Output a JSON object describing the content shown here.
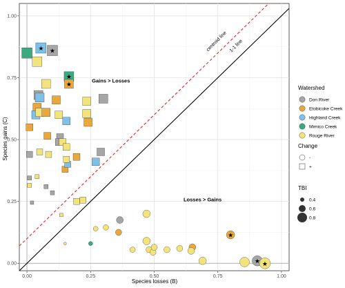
{
  "chart_data": {
    "type": "scatter",
    "xlabel": "Species losses (B)",
    "ylabel": "Species gains (C)",
    "xlim": [
      -0.03,
      1.03
    ],
    "ylim": [
      -0.03,
      1.05
    ],
    "xticks": [
      "0.00",
      "0.25",
      "0.50",
      "0.75",
      "1.00"
    ],
    "yticks": [
      "0.00",
      "0.25",
      "0.50",
      "0.75",
      "1.00"
    ],
    "grid": true,
    "legend_position": "right",
    "colors": {
      "Don River": "#a6a6a6",
      "Etobicoke Creek": "#e8a83e",
      "Highland Creek": "#7ec0e8",
      "Mimico Creek": "#3aaa80",
      "Rouge River": "#f3e37c"
    },
    "reference_lines": [
      {
        "label": "1-1 line",
        "slope": 1,
        "intercept": 0,
        "style": "solid",
        "color": "#000000"
      },
      {
        "label": "centroid line",
        "slope": 1,
        "intercept": 0.1,
        "style": "dashed",
        "color": "#e8232a"
      }
    ],
    "annotations": [
      {
        "text": "Gains > Losses",
        "x": 0.33,
        "y": 0.73
      },
      {
        "text": "Losses > Gains",
        "x": 0.69,
        "y": 0.25
      }
    ],
    "legend": {
      "watershed_title": "Watershed",
      "watersheds": [
        "Don River",
        "Etobicoke Creek",
        "Highland Creek",
        "Mimico Creek",
        "Rouge River"
      ],
      "change_title": "Change",
      "change_items": [
        {
          "label": "-",
          "shape": "circle"
        },
        {
          "label": "+",
          "shape": "square"
        }
      ],
      "tbi_title": "TBI",
      "tbi_items": [
        "0.4",
        "0.6",
        "0.8"
      ]
    },
    "points": [
      {
        "x": 0.0,
        "y": 0.85,
        "w": "Mimico Creek",
        "s": "square",
        "tbi": 0.85
      },
      {
        "x": 0.04,
        "y": 0.815,
        "w": "Rouge River",
        "s": "square",
        "tbi": 0.8
      },
      {
        "x": 0.055,
        "y": 0.87,
        "w": "Highland Creek",
        "s": "square",
        "tbi": 0.85,
        "star": true
      },
      {
        "x": 0.1,
        "y": 0.86,
        "w": "Don River",
        "s": "square",
        "tbi": 0.85,
        "star": true
      },
      {
        "x": 0.075,
        "y": 0.725,
        "w": "Rouge River",
        "s": "square",
        "tbi": 0.75
      },
      {
        "x": 0.045,
        "y": 0.68,
        "w": "Don River",
        "s": "square",
        "tbi": 0.75
      },
      {
        "x": 0.05,
        "y": 0.67,
        "w": "Highland Creek",
        "s": "square",
        "tbi": 0.75
      },
      {
        "x": 0.04,
        "y": 0.63,
        "w": "Etobicoke Creek",
        "s": "square",
        "tbi": 0.7
      },
      {
        "x": 0.035,
        "y": 0.6,
        "w": "Highland Creek",
        "s": "square",
        "tbi": 0.7
      },
      {
        "x": 0.05,
        "y": 0.61,
        "w": "Rouge River",
        "s": "square",
        "tbi": 0.7
      },
      {
        "x": 0.075,
        "y": 0.61,
        "w": "Etobicoke Creek",
        "s": "square",
        "tbi": 0.7
      },
      {
        "x": 0.165,
        "y": 0.755,
        "w": "Mimico Creek",
        "s": "square",
        "tbi": 0.8,
        "star": true
      },
      {
        "x": 0.165,
        "y": 0.725,
        "w": "Etobicoke Creek",
        "s": "square",
        "tbi": 0.75,
        "star": true
      },
      {
        "x": 0.115,
        "y": 0.66,
        "w": "Etobicoke Creek",
        "s": "square",
        "tbi": 0.7
      },
      {
        "x": 0.125,
        "y": 0.6,
        "w": "Rouge River",
        "s": "square",
        "tbi": 0.65
      },
      {
        "x": 0.155,
        "y": 0.575,
        "w": "Highland Creek",
        "s": "square",
        "tbi": 0.65
      },
      {
        "x": 0.235,
        "y": 0.655,
        "w": "Rouge River",
        "s": "square",
        "tbi": 0.7
      },
      {
        "x": 0.235,
        "y": 0.605,
        "w": "Rouge River",
        "s": "square",
        "tbi": 0.7
      },
      {
        "x": 0.24,
        "y": 0.57,
        "w": "Etobicoke Creek",
        "s": "square",
        "tbi": 0.7
      },
      {
        "x": 0.3,
        "y": 0.665,
        "w": "Don River",
        "s": "square",
        "tbi": 0.75
      },
      {
        "x": 0.01,
        "y": 0.55,
        "w": "Etobicoke Creek",
        "s": "square",
        "tbi": 0.6
      },
      {
        "x": 0.08,
        "y": 0.515,
        "w": "Etobicoke Creek",
        "s": "square",
        "tbi": 0.6
      },
      {
        "x": 0.05,
        "y": 0.45,
        "w": "Rouge River",
        "s": "square",
        "tbi": 0.55
      },
      {
        "x": 0.01,
        "y": 0.44,
        "w": "Don River",
        "s": "square",
        "tbi": 0.55
      },
      {
        "x": 0.085,
        "y": 0.44,
        "w": "Rouge River",
        "s": "square",
        "tbi": 0.55
      },
      {
        "x": 0.13,
        "y": 0.51,
        "w": "Don River",
        "s": "square",
        "tbi": 0.6
      },
      {
        "x": 0.125,
        "y": 0.49,
        "w": "Don River",
        "s": "square",
        "tbi": 0.6
      },
      {
        "x": 0.14,
        "y": 0.49,
        "w": "Rouge River",
        "s": "square",
        "tbi": 0.6
      },
      {
        "x": 0.155,
        "y": 0.47,
        "w": "Rouge River",
        "s": "square",
        "tbi": 0.6
      },
      {
        "x": 0.195,
        "y": 0.43,
        "w": "Etobicoke Creek",
        "s": "square",
        "tbi": 0.6
      },
      {
        "x": 0.15,
        "y": 0.38,
        "w": "Etobicoke Creek",
        "s": "square",
        "tbi": 0.55
      },
      {
        "x": 0.16,
        "y": 0.4,
        "w": "Highland Creek",
        "s": "square",
        "tbi": 0.55
      },
      {
        "x": 0.155,
        "y": 0.42,
        "w": "Rouge River",
        "s": "square",
        "tbi": 0.55
      },
      {
        "x": 0.29,
        "y": 0.45,
        "w": "Don River",
        "s": "square",
        "tbi": 0.65
      },
      {
        "x": 0.27,
        "y": 0.41,
        "w": "Highland Creek",
        "s": "square",
        "tbi": 0.65
      },
      {
        "x": 0.01,
        "y": 0.345,
        "w": "Don River",
        "s": "square",
        "tbi": 0.4
      },
      {
        "x": 0.04,
        "y": 0.35,
        "w": "Rouge River",
        "s": "square",
        "tbi": 0.4
      },
      {
        "x": 0.01,
        "y": 0.315,
        "w": "Rouge River",
        "s": "square",
        "tbi": 0.4
      },
      {
        "x": 0.075,
        "y": 0.31,
        "w": "Don River",
        "s": "square",
        "tbi": 0.4
      },
      {
        "x": 0.1,
        "y": 0.285,
        "w": "Don River",
        "s": "square",
        "tbi": 0.4
      },
      {
        "x": 0.02,
        "y": 0.245,
        "w": "Don River",
        "s": "square",
        "tbi": 0.35
      },
      {
        "x": 0.135,
        "y": 0.195,
        "w": "Rouge River",
        "s": "square",
        "tbi": 0.35
      },
      {
        "x": 0.195,
        "y": 0.25,
        "w": "Rouge River",
        "s": "square",
        "tbi": 0.55
      },
      {
        "x": 0.22,
        "y": 0.255,
        "w": "Rouge River",
        "s": "square",
        "tbi": 0.55
      },
      {
        "x": 0.27,
        "y": 0.14,
        "w": "Rouge River",
        "s": "circle",
        "tbi": 0.45
      },
      {
        "x": 0.31,
        "y": 0.145,
        "w": "Rouge River",
        "s": "circle",
        "tbi": 0.5
      },
      {
        "x": 0.365,
        "y": 0.175,
        "w": "Don River",
        "s": "circle",
        "tbi": 0.6
      },
      {
        "x": 0.36,
        "y": 0.125,
        "w": "Etobicoke Creek",
        "s": "circle",
        "tbi": 0.55
      },
      {
        "x": 0.47,
        "y": 0.2,
        "w": "Rouge River",
        "s": "circle",
        "tbi": 0.65
      },
      {
        "x": 0.15,
        "y": 0.08,
        "w": "Rouge River",
        "s": "circle",
        "tbi": 0.3
      },
      {
        "x": 0.25,
        "y": 0.08,
        "w": "Mimico Creek",
        "s": "circle",
        "tbi": 0.4
      },
      {
        "x": 0.415,
        "y": 0.055,
        "w": "Rouge River",
        "s": "circle",
        "tbi": 0.5
      },
      {
        "x": 0.47,
        "y": 0.09,
        "w": "Rouge River",
        "s": "circle",
        "tbi": 0.65
      },
      {
        "x": 0.48,
        "y": 0.055,
        "w": "Rouge River",
        "s": "circle",
        "tbi": 0.55
      },
      {
        "x": 0.495,
        "y": 0.045,
        "w": "Rouge River",
        "s": "circle",
        "tbi": 0.55
      },
      {
        "x": 0.5,
        "y": 0.065,
        "w": "Rouge River",
        "s": "circle",
        "tbi": 0.55
      },
      {
        "x": 0.55,
        "y": 0.055,
        "w": "Rouge River",
        "s": "circle",
        "tbi": 0.55
      },
      {
        "x": 0.6,
        "y": 0.06,
        "w": "Rouge River",
        "s": "circle",
        "tbi": 0.55
      },
      {
        "x": 0.65,
        "y": 0.065,
        "w": "Etobicoke Creek",
        "s": "circle",
        "tbi": 0.6
      },
      {
        "x": 0.645,
        "y": 0.05,
        "w": "Rouge River",
        "s": "circle",
        "tbi": 0.6
      },
      {
        "x": 0.69,
        "y": 0.01,
        "w": "Rouge River",
        "s": "circle",
        "tbi": 0.65
      },
      {
        "x": 0.8,
        "y": 0.115,
        "w": "Etobicoke Creek",
        "s": "circle",
        "tbi": 0.7,
        "star": true
      },
      {
        "x": 0.855,
        "y": 0.005,
        "w": "Rouge River",
        "s": "circle",
        "tbi": 0.8
      },
      {
        "x": 0.905,
        "y": 0.01,
        "w": "Don River",
        "s": "circle",
        "tbi": 0.85,
        "star": true
      },
      {
        "x": 0.935,
        "y": 0.0,
        "w": "Rouge River",
        "s": "circle",
        "tbi": 0.9,
        "star": true
      }
    ]
  }
}
